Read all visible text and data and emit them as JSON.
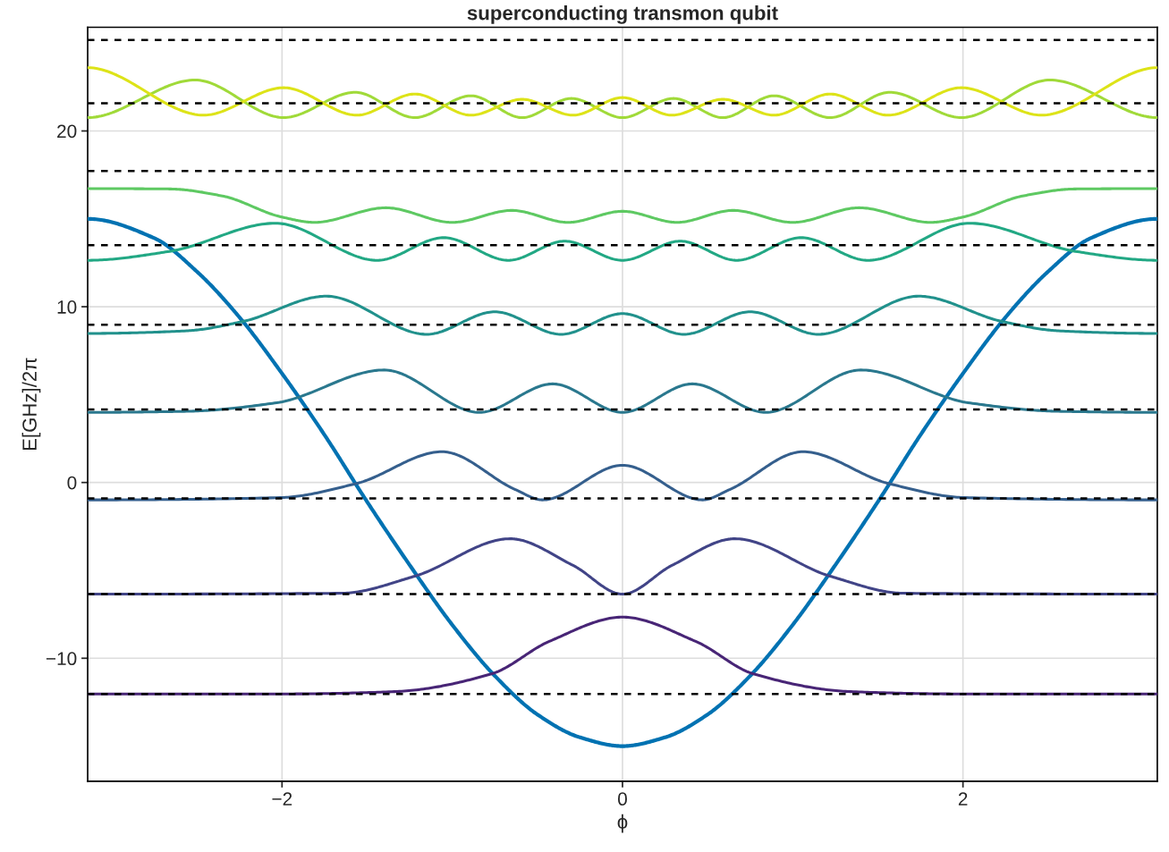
{
  "chart_data": {
    "type": "line",
    "title": "superconducting transmon qubit",
    "xlabel": "ϕ",
    "ylabel": "E[GHz]/2π",
    "xlim": [
      -3.1416,
      3.1416
    ],
    "ylim": [
      -17,
      25.9
    ],
    "xticks": [
      {
        "value": -2,
        "label": "−2"
      },
      0,
      2
    ],
    "yticks": [
      {
        "value": -10,
        "label": "−10"
      },
      0,
      10,
      20
    ],
    "grid": true,
    "line_style": "solid",
    "marker": "none",
    "ref_lines": [
      {
        "axis": "y",
        "value": -12.03,
        "color": "#000000",
        "line_style": "dashed"
      },
      {
        "axis": "y",
        "value": -6.35,
        "color": "#000000",
        "line_style": "dashed"
      },
      {
        "axis": "y",
        "value": -0.91,
        "color": "#000000",
        "line_style": "dashed"
      },
      {
        "axis": "y",
        "value": 4.16,
        "color": "#000000",
        "line_style": "dashed"
      },
      {
        "axis": "y",
        "value": 8.98,
        "color": "#000000",
        "line_style": "dashed"
      },
      {
        "axis": "y",
        "value": 13.5,
        "color": "#000000",
        "line_style": "dashed"
      },
      {
        "axis": "y",
        "value": 17.72,
        "color": "#000000",
        "line_style": "dashed"
      },
      {
        "axis": "y",
        "value": 21.57,
        "color": "#000000",
        "line_style": "dashed"
      },
      {
        "axis": "y",
        "value": 25.18,
        "color": "#000000",
        "line_style": "dashed"
      }
    ],
    "series": [
      {
        "color": "#0072b2",
        "x": [
          -3.1416,
          -2.75,
          -2.5,
          -2.25,
          -2,
          -1.75,
          -1.5,
          -1.25,
          -1,
          -0.75,
          -0.5,
          -0.25,
          0,
          0.25,
          0.5,
          0.75,
          1,
          1.25,
          1.5,
          1.75,
          2,
          2.25,
          2.5,
          2.75,
          3.1416
        ],
        "values": [
          15,
          13.9,
          12.0,
          9.4,
          6.2,
          2.7,
          -1.1,
          -4.7,
          -8.1,
          -11.0,
          -13.2,
          -14.5,
          -15.0,
          -14.5,
          -13.2,
          -11.0,
          -8.1,
          -4.7,
          -1.1,
          2.7,
          6.2,
          9.4,
          12.0,
          13.9,
          15
        ]
      },
      {
        "color": "#482576",
        "x": [
          -3.1416,
          -2,
          -1.34,
          -0.77,
          -0.43,
          0,
          0.43,
          0.77,
          1.34,
          2,
          3.1416
        ],
        "values": [
          -12.03,
          -12.03,
          -11.9,
          -10.89,
          -9.04,
          -7.66,
          -9.04,
          -10.89,
          -11.9,
          -12.03,
          -12.03
        ]
      },
      {
        "color": "#414487",
        "x": [
          -3.1416,
          -1.65,
          -1.22,
          -0.66,
          -0.29,
          0,
          0.29,
          0.66,
          1.22,
          1.65,
          3.1416
        ],
        "values": [
          -6.35,
          -6.3,
          -5.33,
          -3.2,
          -4.72,
          -6.35,
          -4.72,
          -3.2,
          -5.33,
          -6.3,
          -6.35
        ]
      },
      {
        "color": "#355f8d",
        "x": [
          -3.1416,
          -2.01,
          -1.56,
          -1.06,
          -0.63,
          -0.47,
          0,
          0.47,
          0.63,
          1.06,
          1.56,
          2.01,
          3.1416
        ],
        "values": [
          -0.99,
          -0.86,
          -0.05,
          1.75,
          -0.4,
          -0.99,
          0.98,
          -0.99,
          -0.4,
          1.75,
          -0.05,
          -0.86,
          -0.99
        ]
      },
      {
        "color": "#2a788e",
        "x": [
          -3.1416,
          -2.56,
          -2.03,
          -1.4,
          -0.84,
          -0.41,
          0,
          0.41,
          0.84,
          1.4,
          2.03,
          2.56,
          3.1416
        ],
        "values": [
          3.99,
          4.05,
          4.54,
          6.4,
          3.99,
          5.61,
          3.99,
          5.61,
          3.99,
          6.4,
          4.54,
          4.05,
          3.99
        ]
      },
      {
        "color": "#21918c",
        "x": [
          -3.1416,
          -2.56,
          -2.23,
          -1.74,
          -1.15,
          -0.75,
          -0.36,
          0,
          0.36,
          0.75,
          1.15,
          1.74,
          2.23,
          2.56,
          3.1416
        ],
        "values": [
          8.48,
          8.63,
          9.16,
          10.6,
          8.43,
          9.71,
          8.43,
          9.61,
          8.43,
          9.71,
          8.43,
          10.6,
          9.16,
          8.63,
          8.48
        ]
      },
      {
        "color": "#22a884",
        "x": [
          -3.1416,
          -2.66,
          -2.04,
          -1.44,
          -1.05,
          -0.67,
          -0.34,
          0,
          0.34,
          0.67,
          1.05,
          1.44,
          2.04,
          2.66,
          3.1416
        ],
        "values": [
          12.64,
          13.15,
          14.75,
          12.64,
          13.93,
          12.64,
          13.73,
          12.64,
          13.73,
          12.64,
          13.93,
          12.64,
          14.75,
          13.15,
          12.64
        ]
      },
      {
        "color": "#5ec962",
        "x": [
          -3.1416,
          -2.66,
          -2.35,
          -2.0,
          -1.81,
          -1.39,
          -1.0,
          -0.65,
          -0.32,
          0,
          0.32,
          0.65,
          1.0,
          1.39,
          1.81,
          2.0,
          2.35,
          2.66,
          3.1416
        ],
        "values": [
          16.72,
          16.7,
          16.3,
          15.1,
          14.8,
          15.63,
          14.8,
          15.48,
          14.8,
          15.43,
          14.8,
          15.48,
          14.8,
          15.63,
          14.8,
          15.1,
          16.3,
          16.7,
          16.72
        ]
      },
      {
        "color": "#a0da39",
        "x": [
          -3.1416,
          -2.51,
          -1.99,
          -1.57,
          -1.22,
          -0.89,
          -0.59,
          -0.3,
          0,
          0.3,
          0.59,
          0.89,
          1.22,
          1.57,
          1.99,
          2.51,
          3.1416
        ],
        "values": [
          20.76,
          22.9,
          20.76,
          22.2,
          20.76,
          22.0,
          20.76,
          21.85,
          20.76,
          21.85,
          20.76,
          22.0,
          20.76,
          22.2,
          20.76,
          22.9,
          20.76
        ]
      },
      {
        "color": "#dde318",
        "x": [
          -3.1416,
          -2.46,
          -1.99,
          -1.56,
          -1.22,
          -0.89,
          -0.59,
          -0.29,
          0,
          0.29,
          0.59,
          0.89,
          1.22,
          1.56,
          1.99,
          2.46,
          3.1416
        ],
        "values": [
          23.6,
          20.9,
          22.46,
          20.9,
          22.1,
          20.9,
          21.8,
          20.9,
          21.9,
          20.9,
          21.8,
          20.9,
          22.1,
          20.9,
          22.46,
          20.9,
          23.6
        ]
      }
    ]
  }
}
